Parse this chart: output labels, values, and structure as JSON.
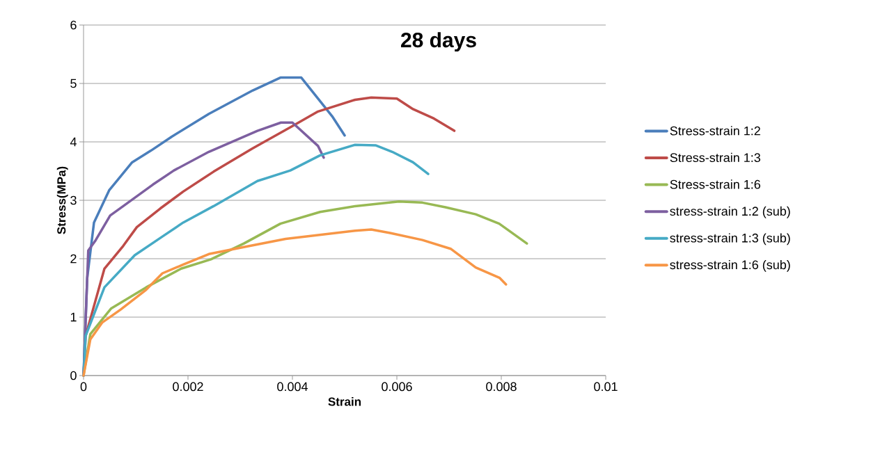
{
  "chart_data": {
    "type": "line",
    "title": "28 days",
    "xlabel": "Strain",
    "ylabel": "Stress(MPa)",
    "xlim": [
      0,
      0.01
    ],
    "ylim": [
      0,
      6
    ],
    "xticks": [
      0,
      0.002,
      0.004,
      0.006,
      0.008,
      0.01
    ],
    "yticks": [
      0,
      1,
      2,
      3,
      4,
      5,
      6
    ],
    "grid": "y",
    "legend": "right",
    "series": [
      {
        "name": "Stress-strain 1:2",
        "color": "#4a7ebb",
        "x": [
          0,
          7e-05,
          0.0002,
          0.00049,
          0.00093,
          0.00129,
          0.00169,
          0.0024,
          0.00324,
          0.00377,
          0.00417,
          0.00476,
          0.005
        ],
        "values": [
          0,
          1.67,
          2.62,
          3.17,
          3.65,
          3.85,
          4.09,
          4.48,
          4.88,
          5.1,
          5.1,
          4.44,
          4.11
        ]
      },
      {
        "name": "Stress-strain 1:3",
        "color": "#be4b48",
        "x": [
          0,
          4e-05,
          0.0004,
          0.00076,
          0.00102,
          0.00147,
          0.00191,
          0.00249,
          0.00324,
          0.00396,
          0.00449,
          0.0052,
          0.00551,
          0.006,
          0.00631,
          0.00671,
          0.0071
        ],
        "values": [
          0,
          0.68,
          1.83,
          2.22,
          2.54,
          2.86,
          3.15,
          3.49,
          3.89,
          4.25,
          4.52,
          4.72,
          4.76,
          4.74,
          4.56,
          4.4,
          4.19
        ]
      },
      {
        "name": "Stress-strain 1:6",
        "color": "#98b954",
        "x": [
          0,
          0.00013,
          0.00053,
          0.0012,
          0.00187,
          0.00244,
          0.00307,
          0.00377,
          0.00453,
          0.0052,
          0.00604,
          0.00649,
          0.00693,
          0.00751,
          0.00796,
          0.00849
        ],
        "values": [
          0,
          0.71,
          1.15,
          1.51,
          1.83,
          1.99,
          2.26,
          2.6,
          2.8,
          2.9,
          2.98,
          2.96,
          2.88,
          2.76,
          2.6,
          2.26
        ]
      },
      {
        "name": "stress-strain 1:2 (sub)",
        "color": "#7d5fa0",
        "x": [
          0,
          9e-05,
          0.00022,
          0.00051,
          0.00076,
          0.00133,
          0.00173,
          0.0024,
          0.00333,
          0.00378,
          0.004,
          0.00449,
          0.0046
        ],
        "values": [
          0,
          2.14,
          2.3,
          2.74,
          2.9,
          3.27,
          3.51,
          3.83,
          4.19,
          4.33,
          4.33,
          3.93,
          3.73
        ]
      },
      {
        "name": "stress-strain 1:3 (sub)",
        "color": "#46aac5",
        "x": [
          0,
          4e-05,
          0.0004,
          0.00098,
          0.00151,
          0.00191,
          0.00249,
          0.00333,
          0.00396,
          0.00453,
          0.0052,
          0.0056,
          0.00591,
          0.00631,
          0.0066
        ],
        "values": [
          0,
          0.68,
          1.51,
          2.06,
          2.38,
          2.62,
          2.9,
          3.33,
          3.51,
          3.77,
          3.95,
          3.94,
          3.83,
          3.65,
          3.45
        ]
      },
      {
        "name": "stress-strain 1:6 (sub)",
        "color": "#f79646",
        "x": [
          0,
          0.00013,
          0.00036,
          0.00071,
          0.0012,
          0.00151,
          0.00191,
          0.0024,
          0.00307,
          0.00387,
          0.0052,
          0.00551,
          0.00587,
          0.00649,
          0.00703,
          0.00751,
          0.00797,
          0.00809
        ],
        "values": [
          0,
          0.62,
          0.91,
          1.13,
          1.47,
          1.75,
          1.9,
          2.08,
          2.2,
          2.34,
          2.48,
          2.5,
          2.44,
          2.32,
          2.17,
          1.85,
          1.67,
          1.56
        ]
      }
    ]
  }
}
